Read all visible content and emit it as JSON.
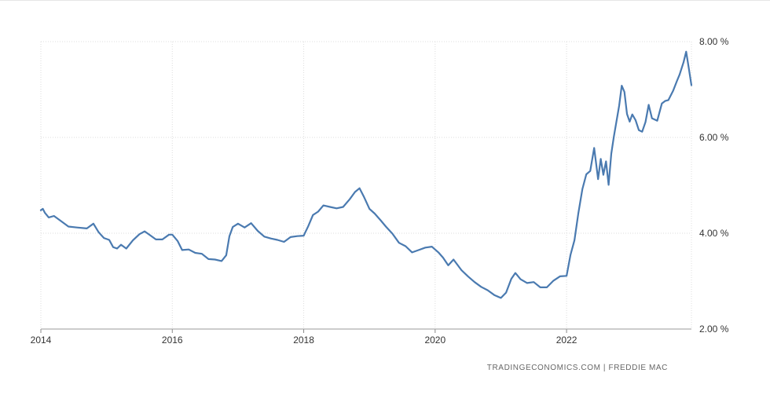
{
  "chart_data": {
    "type": "line",
    "title": "",
    "xlabel": "",
    "ylabel": "",
    "xlim": [
      2014.0,
      2023.9
    ],
    "ylim": [
      2.0,
      8.0
    ],
    "grid": true,
    "y_ticks": [
      "2.00 %",
      "4.00 %",
      "6.00 %",
      "8.00 %"
    ],
    "y_tick_values": [
      2,
      4,
      6,
      8
    ],
    "x_ticks": [
      "2014",
      "2016",
      "2018",
      "2020",
      "2022"
    ],
    "x_tick_values": [
      2014,
      2016,
      2018,
      2020,
      2022
    ],
    "line_color": "#4a7ab0",
    "series": [
      {
        "x": [
          2014.0,
          2014.03,
          2014.06,
          2014.12,
          2014.2,
          2014.3,
          2014.42,
          2014.55,
          2014.7,
          2014.8,
          2014.88,
          2014.96,
          2015.04,
          2015.1,
          2015.16,
          2015.22,
          2015.3,
          2015.4,
          2015.5,
          2015.58,
          2015.66,
          2015.75,
          2015.85,
          2015.95,
          2016.0,
          2016.08,
          2016.15,
          2016.25,
          2016.35,
          2016.45,
          2016.55,
          2016.65,
          2016.75,
          2016.82,
          2016.87,
          2016.92,
          2017.0,
          2017.1,
          2017.2,
          2017.3,
          2017.4,
          2017.5,
          2017.6,
          2017.7,
          2017.8,
          2017.9,
          2018.0,
          2018.07,
          2018.14,
          2018.22,
          2018.3,
          2018.4,
          2018.5,
          2018.6,
          2018.7,
          2018.78,
          2018.85,
          2018.92,
          2019.0,
          2019.08,
          2019.17,
          2019.25,
          2019.35,
          2019.45,
          2019.55,
          2019.65,
          2019.75,
          2019.85,
          2019.95,
          2020.05,
          2020.12,
          2020.2,
          2020.28,
          2020.4,
          2020.5,
          2020.6,
          2020.7,
          2020.8,
          2020.9,
          2021.0,
          2021.08,
          2021.16,
          2021.22,
          2021.3,
          2021.4,
          2021.5,
          2021.6,
          2021.7,
          2021.8,
          2021.9,
          2022.0,
          2022.06,
          2022.12,
          2022.18,
          2022.24,
          2022.3,
          2022.36,
          2022.42,
          2022.48,
          2022.52,
          2022.56,
          2022.6,
          2022.64,
          2022.68,
          2022.72,
          2022.8,
          2022.84,
          2022.88,
          2022.92,
          2022.96,
          2023.0,
          2023.05,
          2023.1,
          2023.15,
          2023.2,
          2023.25,
          2023.3,
          2023.38,
          2023.45,
          2023.5,
          2023.55,
          2023.62,
          2023.68,
          2023.72,
          2023.78,
          2023.82,
          2023.86,
          2023.9
        ],
        "y": [
          4.48,
          4.51,
          4.43,
          4.33,
          4.36,
          4.26,
          4.14,
          4.12,
          4.1,
          4.2,
          4.02,
          3.9,
          3.86,
          3.71,
          3.68,
          3.76,
          3.68,
          3.85,
          3.98,
          4.04,
          3.96,
          3.87,
          3.87,
          3.97,
          3.97,
          3.84,
          3.65,
          3.66,
          3.59,
          3.57,
          3.46,
          3.45,
          3.42,
          3.54,
          3.94,
          4.13,
          4.2,
          4.12,
          4.21,
          4.05,
          3.93,
          3.89,
          3.86,
          3.82,
          3.92,
          3.94,
          3.95,
          4.15,
          4.38,
          4.45,
          4.58,
          4.55,
          4.52,
          4.55,
          4.71,
          4.86,
          4.94,
          4.75,
          4.51,
          4.41,
          4.27,
          4.14,
          3.99,
          3.8,
          3.73,
          3.6,
          3.65,
          3.7,
          3.72,
          3.6,
          3.49,
          3.33,
          3.45,
          3.23,
          3.1,
          2.98,
          2.88,
          2.81,
          2.71,
          2.65,
          2.76,
          3.05,
          3.17,
          3.04,
          2.96,
          2.98,
          2.87,
          2.87,
          3.01,
          3.1,
          3.11,
          3.55,
          3.85,
          4.42,
          4.92,
          5.23,
          5.3,
          5.78,
          5.13,
          5.55,
          5.22,
          5.5,
          5.01,
          5.66,
          6.02,
          6.66,
          7.08,
          6.95,
          6.49,
          6.33,
          6.48,
          6.36,
          6.15,
          6.12,
          6.32,
          6.68,
          6.4,
          6.35,
          6.71,
          6.76,
          6.78,
          6.97,
          7.18,
          7.31,
          7.57,
          7.79,
          7.44,
          7.09
        ]
      }
    ]
  },
  "source_text": "TRADINGECONOMICS.COM  |  FREDDIE MAC"
}
